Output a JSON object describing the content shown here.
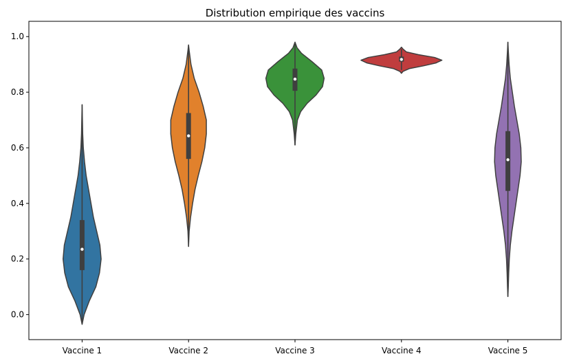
{
  "chart_data": {
    "type": "violin",
    "title": "Distribution empirique des vaccins",
    "xlabel": "",
    "ylabel": "",
    "ylim": [
      -0.09,
      1.055
    ],
    "yticks": [
      0.0,
      0.2,
      0.4,
      0.6,
      0.8,
      1.0
    ],
    "ytick_labels": [
      "0.0",
      "0.2",
      "0.4",
      "0.6",
      "0.8",
      "1.0"
    ],
    "grid": false,
    "categories": [
      "Vaccine 1",
      "Vaccine 2",
      "Vaccine 3",
      "Vaccine 4",
      "Vaccine 5"
    ],
    "series": [
      {
        "category": "Vaccine 1",
        "color": "#3274a1",
        "range": [
          -0.035,
          0.755
        ],
        "whisker": [
          -0.035,
          0.755
        ],
        "q1": 0.16,
        "median": 0.235,
        "q3": 0.34,
        "density": [
          [
            -0.035,
            0
          ],
          [
            0.0,
            0.05
          ],
          [
            0.05,
            0.18
          ],
          [
            0.1,
            0.34
          ],
          [
            0.15,
            0.43
          ],
          [
            0.2,
            0.47
          ],
          [
            0.25,
            0.44
          ],
          [
            0.3,
            0.36
          ],
          [
            0.35,
            0.28
          ],
          [
            0.4,
            0.22
          ],
          [
            0.45,
            0.16
          ],
          [
            0.5,
            0.1
          ],
          [
            0.55,
            0.06
          ],
          [
            0.6,
            0.03
          ],
          [
            0.65,
            0.015
          ],
          [
            0.7,
            0.008
          ],
          [
            0.755,
            0
          ]
        ]
      },
      {
        "category": "Vaccine 2",
        "color": "#e1812c",
        "range": [
          0.245,
          0.97
        ],
        "whisker": [
          0.245,
          0.97
        ],
        "q1": 0.56,
        "median": 0.643,
        "q3": 0.725,
        "density": [
          [
            0.245,
            0
          ],
          [
            0.3,
            0.015
          ],
          [
            0.35,
            0.05
          ],
          [
            0.4,
            0.1
          ],
          [
            0.45,
            0.16
          ],
          [
            0.5,
            0.24
          ],
          [
            0.55,
            0.33
          ],
          [
            0.6,
            0.4
          ],
          [
            0.65,
            0.44
          ],
          [
            0.7,
            0.44
          ],
          [
            0.75,
            0.36
          ],
          [
            0.8,
            0.26
          ],
          [
            0.85,
            0.14
          ],
          [
            0.9,
            0.06
          ],
          [
            0.95,
            0.015
          ],
          [
            0.97,
            0
          ]
        ]
      },
      {
        "category": "Vaccine 3",
        "color": "#3a923a",
        "range": [
          0.61,
          0.98
        ],
        "whisker": [
          0.61,
          0.98
        ],
        "q1": 0.805,
        "median": 0.847,
        "q3": 0.885,
        "density": [
          [
            0.61,
            0
          ],
          [
            0.65,
            0.02
          ],
          [
            0.7,
            0.06
          ],
          [
            0.73,
            0.14
          ],
          [
            0.76,
            0.3
          ],
          [
            0.79,
            0.52
          ],
          [
            0.82,
            0.68
          ],
          [
            0.85,
            0.72
          ],
          [
            0.88,
            0.66
          ],
          [
            0.91,
            0.42
          ],
          [
            0.94,
            0.16
          ],
          [
            0.96,
            0.05
          ],
          [
            0.98,
            0
          ]
        ]
      },
      {
        "category": "Vaccine 4",
        "color": "#c03d3e",
        "range": [
          0.868,
          0.962
        ],
        "whisker": [
          0.88,
          0.955
        ],
        "q1": 0.91,
        "median": 0.918,
        "q3": 0.928,
        "density": [
          [
            0.868,
            0
          ],
          [
            0.875,
            0.04
          ],
          [
            0.885,
            0.2
          ],
          [
            0.895,
            0.55
          ],
          [
            0.905,
            0.85
          ],
          [
            0.915,
            1.0
          ],
          [
            0.925,
            0.82
          ],
          [
            0.935,
            0.42
          ],
          [
            0.945,
            0.12
          ],
          [
            0.955,
            0.04
          ],
          [
            0.962,
            0
          ]
        ]
      },
      {
        "category": "Vaccine 5",
        "color": "#9372b2",
        "range": [
          0.065,
          0.98
        ],
        "whisker": [
          0.065,
          0.98
        ],
        "q1": 0.445,
        "median": 0.557,
        "q3": 0.66,
        "density": [
          [
            0.065,
            0
          ],
          [
            0.1,
            0.01
          ],
          [
            0.15,
            0.02
          ],
          [
            0.2,
            0.035
          ],
          [
            0.25,
            0.06
          ],
          [
            0.3,
            0.1
          ],
          [
            0.35,
            0.15
          ],
          [
            0.4,
            0.2
          ],
          [
            0.45,
            0.25
          ],
          [
            0.5,
            0.3
          ],
          [
            0.55,
            0.33
          ],
          [
            0.6,
            0.32
          ],
          [
            0.65,
            0.28
          ],
          [
            0.7,
            0.22
          ],
          [
            0.75,
            0.16
          ],
          [
            0.8,
            0.11
          ],
          [
            0.85,
            0.06
          ],
          [
            0.9,
            0.03
          ],
          [
            0.95,
            0.01
          ],
          [
            0.98,
            0
          ]
        ]
      }
    ]
  }
}
